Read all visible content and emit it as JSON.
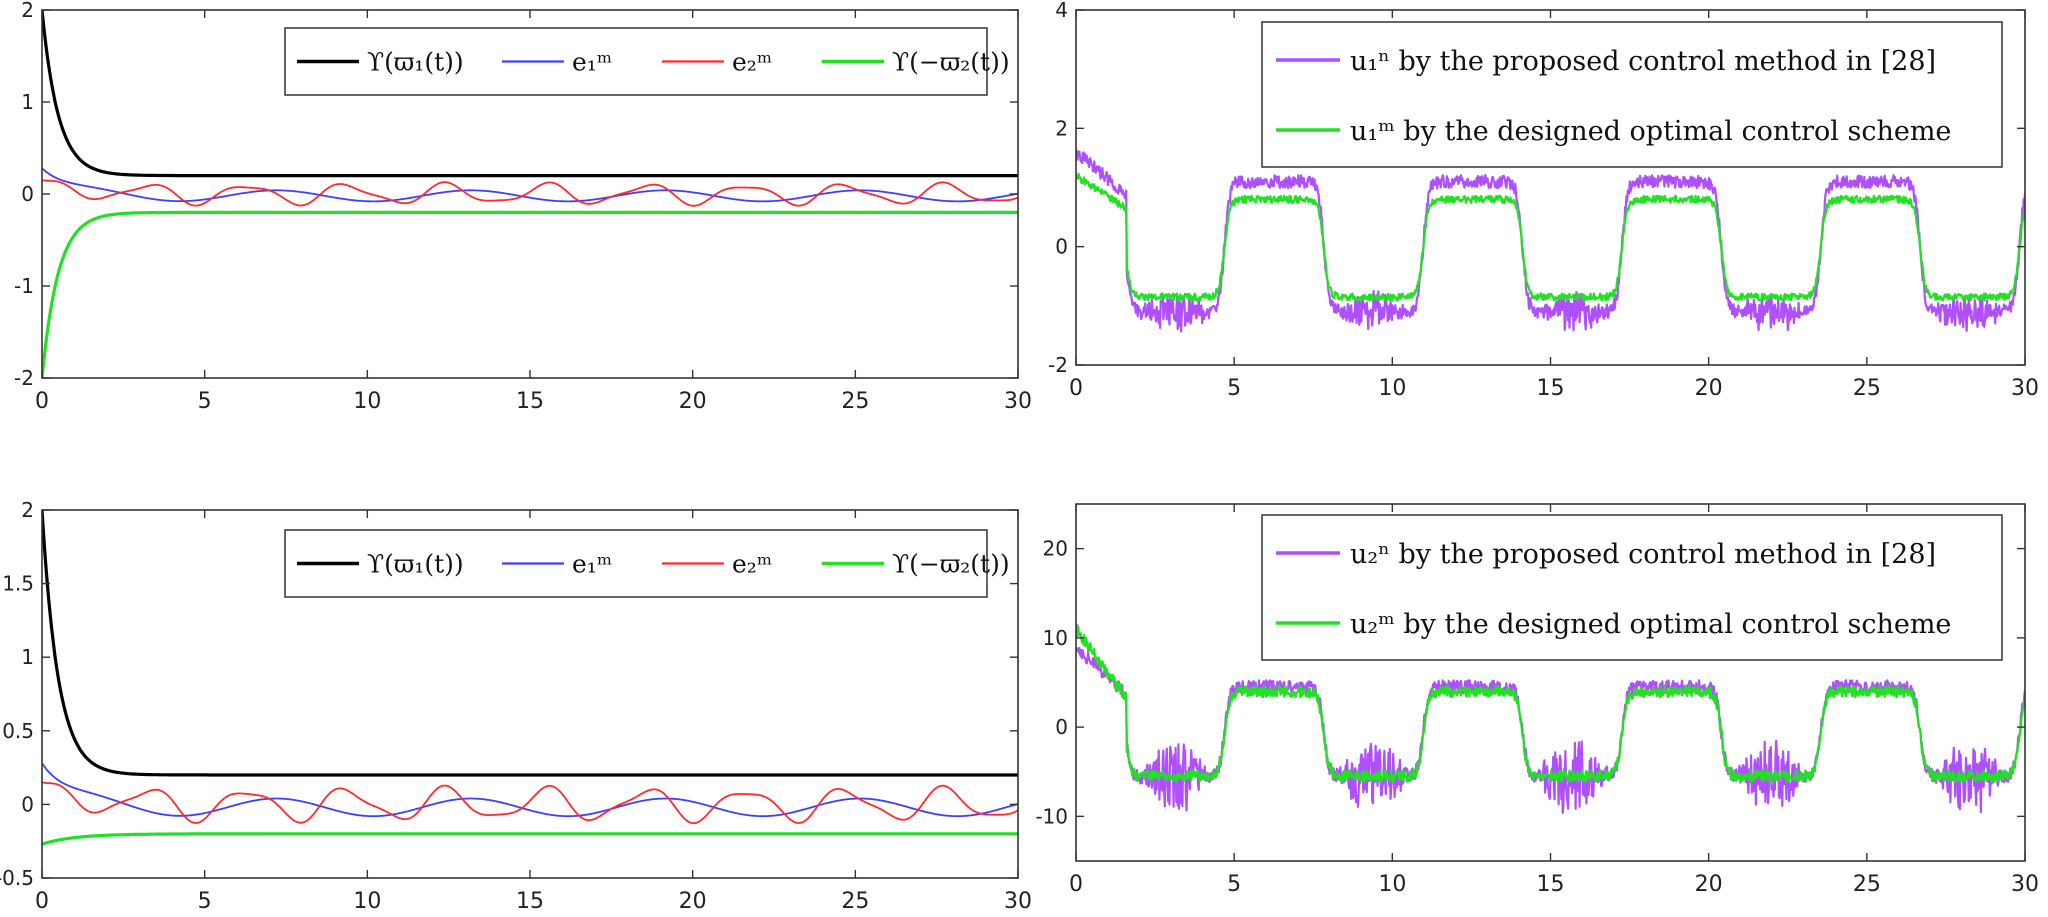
{
  "chart_data": [
    {
      "id": "tl",
      "type": "line",
      "title": "",
      "xlabel": "",
      "ylabel": "",
      "xlim": [
        0,
        30
      ],
      "ylim": [
        -2,
        2
      ],
      "xticks": [
        0,
        5,
        10,
        15,
        20,
        25,
        30
      ],
      "xtick_labels": [
        "0",
        "5",
        "10",
        "15",
        "20",
        "25",
        "30"
      ],
      "yticks": [
        -2,
        -1,
        0,
        1,
        2
      ],
      "ytick_labels": [
        "-2",
        "-1",
        "0",
        "1",
        "2"
      ],
      "grid": false,
      "legend": "top-right, single row",
      "series": [
        {
          "name": "ϒ(ϖ₁(t))",
          "color": "#000000",
          "kind": "bound_upper",
          "params": {
            "inf": 0.2,
            "start": 2.0,
            "rate": 2.0
          }
        },
        {
          "name": "e₁ᵐ",
          "color": "#3f3fff",
          "kind": "error_small",
          "params": {
            "start": 0.28,
            "amp": 0.06
          }
        },
        {
          "name": "e₂ᵐ",
          "color": "#ff2a2a",
          "kind": "error_osc",
          "params": {
            "start": 0.15,
            "amp": 0.1
          }
        },
        {
          "name": "ϒ(−ϖ₂(t))",
          "color": "#22e022",
          "kind": "bound_lower",
          "params": {
            "inf": -0.2,
            "start": -2.0,
            "rate": 2.0
          }
        }
      ]
    },
    {
      "id": "tr",
      "type": "line",
      "title": "",
      "xlabel": "",
      "ylabel": "",
      "xlim": [
        0,
        30
      ],
      "ylim": [
        -2,
        4
      ],
      "xticks": [
        0,
        5,
        10,
        15,
        20,
        25,
        30
      ],
      "xtick_labels": [
        "0",
        "5",
        "10",
        "15",
        "20",
        "25",
        "30"
      ],
      "yticks": [
        -2,
        0,
        2,
        4
      ],
      "ytick_labels": [
        "-2",
        "0",
        "2",
        "4"
      ],
      "grid": false,
      "legend": "top-right, stacked",
      "series": [
        {
          "name": "u₁ⁿ by the proposed control method in [28]",
          "color": "#b04fff",
          "kind": "square",
          "params": {
            "high": 1.1,
            "low": -1.1,
            "noise": 0.22,
            "start": 1.6,
            "extra_noise_low": 0.25
          }
        },
        {
          "name": "u₁ᵐ by the designed optimal control scheme",
          "color": "#22e022",
          "kind": "square",
          "params": {
            "high": 0.8,
            "low": -0.85,
            "noise": 0.12,
            "start": 1.2,
            "extra_noise_low": 0.0
          }
        }
      ]
    },
    {
      "id": "bl",
      "type": "line",
      "title": "",
      "xlabel": "",
      "ylabel": "",
      "xlim": [
        0,
        30
      ],
      "ylim": [
        -0.5,
        2
      ],
      "xticks": [
        0,
        5,
        10,
        15,
        20,
        25,
        30
      ],
      "xtick_labels": [
        "0",
        "5",
        "10",
        "15",
        "20",
        "25",
        "30"
      ],
      "yticks": [
        -0.5,
        0,
        0.5,
        1,
        1.5,
        2
      ],
      "ytick_labels": [
        "-0.5",
        "0",
        "0.5",
        "1",
        "1.5",
        "2"
      ],
      "grid": false,
      "legend": "top-right, single row",
      "series": [
        {
          "name": "ϒ(ϖ₁(t))",
          "color": "#000000",
          "kind": "bound_upper",
          "params": {
            "inf": 0.2,
            "start": 2.0,
            "rate": 2.0
          }
        },
        {
          "name": "e₁ᵐ",
          "color": "#3f3fff",
          "kind": "error_small",
          "params": {
            "start": 0.28,
            "amp": 0.06
          }
        },
        {
          "name": "e₂ᵐ",
          "color": "#ff2a2a",
          "kind": "error_osc",
          "params": {
            "start": 0.15,
            "amp": 0.1
          }
        },
        {
          "name": "ϒ(−ϖ₂(t))",
          "color": "#22e022",
          "kind": "bound_lower",
          "params": {
            "inf": -0.2,
            "start": -0.27,
            "rate": 1.0
          }
        }
      ]
    },
    {
      "id": "br",
      "type": "line",
      "title": "",
      "xlabel": "",
      "ylabel": "",
      "xlim": [
        0,
        30
      ],
      "ylim": [
        -15,
        25
      ],
      "xticks": [
        0,
        5,
        10,
        15,
        20,
        25,
        30
      ],
      "xtick_labels": [
        "0",
        "5",
        "10",
        "15",
        "20",
        "25",
        "30"
      ],
      "yticks": [
        -10,
        0,
        10,
        20
      ],
      "ytick_labels": [
        "-10",
        "0",
        "10",
        "20"
      ],
      "grid": false,
      "legend": "top-right, stacked",
      "series": [
        {
          "name": "u₂ⁿ by the proposed control method in [28]",
          "color": "#b04fff",
          "kind": "square",
          "params": {
            "high": 4.5,
            "low": -5.5,
            "noise": 1.5,
            "start": 9.0,
            "extra_noise_low": 3.5
          }
        },
        {
          "name": "u₂ᵐ by the designed optimal control scheme",
          "color": "#22e022",
          "kind": "square",
          "params": {
            "high": 4.0,
            "low": -5.5,
            "noise": 1.3,
            "start": 11.0,
            "extra_noise_low": 0.0
          }
        }
      ]
    }
  ]
}
